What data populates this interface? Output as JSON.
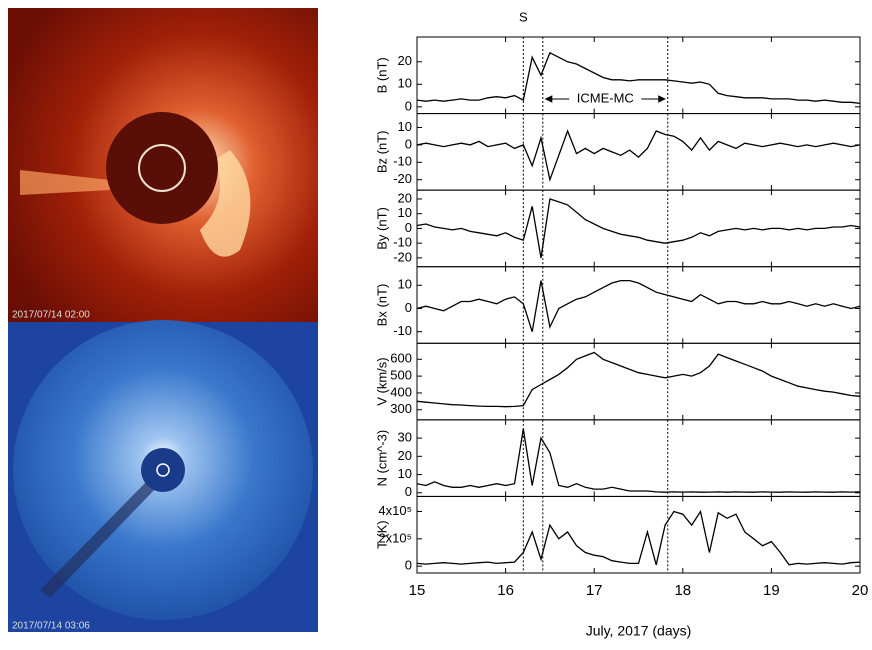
{
  "images": [
    {
      "label": "2017/07/14 02:00"
    },
    {
      "label": "2017/07/14 03:06"
    }
  ],
  "events": {
    "markers": [
      16.2,
      16.42,
      17.83
    ],
    "shock_label": "S",
    "interval_label": "ICME-MC"
  },
  "chart_data": [
    {
      "type": "line",
      "ylabel": "B (nT)",
      "ylim": [
        -3,
        31
      ],
      "yticks": [
        0,
        10,
        20
      ],
      "color": "#000000",
      "x": [
        15.0,
        15.1,
        15.2,
        15.3,
        15.4,
        15.5,
        15.6,
        15.7,
        15.8,
        15.9,
        16.0,
        16.1,
        16.2,
        16.3,
        16.4,
        16.5,
        16.6,
        16.7,
        16.8,
        16.9,
        17.0,
        17.1,
        17.2,
        17.3,
        17.4,
        17.5,
        17.6,
        17.7,
        17.8,
        17.9,
        18.0,
        18.1,
        18.2,
        18.3,
        18.4,
        18.5,
        18.6,
        18.7,
        18.8,
        18.9,
        19.0,
        19.1,
        19.2,
        19.3,
        19.4,
        19.5,
        19.6,
        19.7,
        19.8,
        19.9,
        20.0
      ],
      "values": [
        3,
        2.5,
        3,
        2.5,
        3,
        3.5,
        3,
        3,
        4,
        4.5,
        4,
        5,
        3,
        22,
        14,
        24,
        22,
        20,
        19,
        17,
        15,
        13,
        12,
        12,
        11.5,
        12,
        12,
        12,
        12,
        11.5,
        11,
        10.5,
        11,
        10,
        6,
        5,
        4.5,
        4,
        4,
        4,
        3.5,
        3.5,
        3.5,
        3,
        3,
        2.5,
        3,
        2.5,
        2,
        2,
        1.5
      ]
    },
    {
      "type": "line",
      "ylabel": "Bz (nT)",
      "ylim": [
        -26,
        18
      ],
      "yticks": [
        10,
        0,
        -10,
        -20
      ],
      "color": "#000000",
      "x": [
        15.0,
        15.1,
        15.2,
        15.3,
        15.4,
        15.5,
        15.6,
        15.7,
        15.8,
        15.9,
        16.0,
        16.1,
        16.2,
        16.3,
        16.4,
        16.5,
        16.6,
        16.7,
        16.8,
        16.9,
        17.0,
        17.1,
        17.2,
        17.3,
        17.4,
        17.5,
        17.6,
        17.7,
        17.8,
        17.9,
        18.0,
        18.1,
        18.2,
        18.3,
        18.4,
        18.5,
        18.6,
        18.7,
        18.8,
        18.9,
        19.0,
        19.1,
        19.2,
        19.3,
        19.4,
        19.5,
        19.6,
        19.7,
        19.8,
        19.9,
        20.0
      ],
      "values": [
        0,
        1,
        0,
        -1,
        0,
        1,
        0,
        2,
        -1,
        0,
        1,
        -2,
        0,
        -12,
        4,
        -20,
        -6,
        8,
        -5,
        -2,
        -5,
        -2,
        -4,
        -6,
        -3,
        -7,
        -2,
        8,
        6,
        5,
        2,
        -3,
        4,
        -3,
        2,
        0,
        -2,
        1,
        0,
        -1,
        0,
        1,
        0,
        -1,
        0,
        -1,
        0,
        1,
        0,
        -1,
        0
      ]
    },
    {
      "type": "line",
      "ylabel": "By (nT)",
      "ylim": [
        -26,
        26
      ],
      "yticks": [
        20,
        10,
        0,
        -10,
        -20
      ],
      "color": "#000000",
      "x": [
        15.0,
        15.1,
        15.2,
        15.3,
        15.4,
        15.5,
        15.6,
        15.7,
        15.8,
        15.9,
        16.0,
        16.1,
        16.2,
        16.3,
        16.4,
        16.5,
        16.6,
        16.7,
        16.8,
        16.9,
        17.0,
        17.1,
        17.2,
        17.3,
        17.4,
        17.5,
        17.6,
        17.7,
        17.8,
        17.9,
        18.0,
        18.1,
        18.2,
        18.3,
        18.4,
        18.5,
        18.6,
        18.7,
        18.8,
        18.9,
        19.0,
        19.1,
        19.2,
        19.3,
        19.4,
        19.5,
        19.6,
        19.7,
        19.8,
        19.9,
        20.0
      ],
      "values": [
        2,
        3,
        1,
        0,
        -1,
        0,
        -2,
        -3,
        -4,
        -5,
        -3,
        -6,
        -8,
        15,
        -20,
        20,
        18,
        16,
        11,
        6,
        3,
        0,
        -2,
        -4,
        -5,
        -6,
        -8,
        -9,
        -10,
        -9,
        -8,
        -6,
        -3,
        -5,
        -2,
        -1,
        0,
        -1,
        0,
        -1,
        0,
        0,
        -1,
        0,
        -1,
        0,
        0,
        1,
        1,
        2,
        1
      ]
    },
    {
      "type": "line",
      "ylabel": "Bx (nT)",
      "ylim": [
        -15,
        18
      ],
      "yticks": [
        10,
        0,
        -10
      ],
      "color": "#000000",
      "x": [
        15.0,
        15.1,
        15.2,
        15.3,
        15.4,
        15.5,
        15.6,
        15.7,
        15.8,
        15.9,
        16.0,
        16.1,
        16.2,
        16.3,
        16.4,
        16.5,
        16.6,
        16.7,
        16.8,
        16.9,
        17.0,
        17.1,
        17.2,
        17.3,
        17.4,
        17.5,
        17.6,
        17.7,
        17.8,
        17.9,
        18.0,
        18.1,
        18.2,
        18.3,
        18.4,
        18.5,
        18.6,
        18.7,
        18.8,
        18.9,
        19.0,
        19.1,
        19.2,
        19.3,
        19.4,
        19.5,
        19.6,
        19.7,
        19.8,
        19.9,
        20.0
      ],
      "values": [
        0,
        1,
        0,
        -1,
        1,
        3,
        3,
        4,
        3,
        2,
        4,
        5,
        2,
        -10,
        12,
        -8,
        0,
        2,
        4,
        5,
        7,
        9,
        11,
        12,
        12,
        11,
        9,
        7,
        6,
        5,
        4,
        3,
        6,
        4,
        2,
        3,
        3,
        2,
        2,
        3,
        2,
        2,
        3,
        2,
        1,
        2,
        1,
        2,
        1,
        0,
        1
      ]
    },
    {
      "type": "line",
      "ylabel": "V (km/s)",
      "ylim": [
        240,
        695
      ],
      "yticks": [
        300,
        400,
        500,
        600
      ],
      "color": "#000000",
      "x": [
        15.0,
        15.1,
        15.2,
        15.3,
        15.4,
        15.5,
        15.6,
        15.7,
        15.8,
        15.9,
        16.0,
        16.1,
        16.2,
        16.3,
        16.4,
        16.5,
        16.6,
        16.7,
        16.8,
        16.9,
        17.0,
        17.1,
        17.2,
        17.3,
        17.4,
        17.5,
        17.6,
        17.7,
        17.8,
        17.9,
        18.0,
        18.1,
        18.2,
        18.3,
        18.4,
        18.5,
        18.6,
        18.7,
        18.8,
        18.9,
        19.0,
        19.1,
        19.2,
        19.3,
        19.4,
        19.5,
        19.6,
        19.7,
        19.8,
        19.9,
        20.0
      ],
      "values": [
        350,
        345,
        340,
        335,
        330,
        328,
        325,
        322,
        320,
        320,
        318,
        320,
        325,
        420,
        450,
        480,
        510,
        550,
        600,
        620,
        640,
        600,
        580,
        560,
        540,
        520,
        510,
        500,
        490,
        500,
        510,
        500,
        520,
        560,
        630,
        610,
        590,
        570,
        550,
        530,
        500,
        480,
        460,
        440,
        430,
        420,
        410,
        405,
        395,
        385,
        380
      ]
    },
    {
      "type": "line",
      "ylabel": "N (cm^-3)",
      "ylim": [
        -2,
        40
      ],
      "yticks": [
        0,
        10,
        20,
        30
      ],
      "color": "#000000",
      "x": [
        15.0,
        15.1,
        15.2,
        15.3,
        15.4,
        15.5,
        15.6,
        15.7,
        15.8,
        15.9,
        16.0,
        16.1,
        16.2,
        16.3,
        16.4,
        16.5,
        16.6,
        16.7,
        16.8,
        16.9,
        17.0,
        17.1,
        17.2,
        17.3,
        17.4,
        17.5,
        17.6,
        17.7,
        17.8,
        17.9,
        18.0,
        18.1,
        18.2,
        18.3,
        18.4,
        18.5,
        18.6,
        18.7,
        18.8,
        18.9,
        19.0,
        19.1,
        19.2,
        19.3,
        19.4,
        19.5,
        19.6,
        19.7,
        19.8,
        19.9,
        20.0
      ],
      "values": [
        5,
        4,
        6,
        4,
        3,
        3,
        4,
        3,
        4,
        5,
        4,
        5,
        35,
        4,
        30,
        22,
        4,
        3,
        5,
        3,
        2,
        2,
        3,
        2,
        1,
        1,
        1,
        0.5,
        0.3,
        0.5,
        0.4,
        0.5,
        0.3,
        0.4,
        0.5,
        0.3,
        0.5,
        0.4,
        0.3,
        0.5,
        0.4,
        0.3,
        0.5,
        0.4,
        0.3,
        0.5,
        0.4,
        0.3,
        0.5,
        0.4,
        0.5
      ]
    },
    {
      "type": "line",
      "ylabel": "T (K)",
      "ylim": [
        -50000,
        510000
      ],
      "yticks": [
        0,
        {
          "value": 200000,
          "label": "2x10⁵"
        },
        {
          "value": 400000,
          "label": "4x10⁵"
        }
      ],
      "color": "#000000",
      "xlabel": "July, 2017 (days)",
      "xlim": [
        15,
        20
      ],
      "xticks": [
        15,
        16,
        17,
        18,
        19,
        20
      ],
      "x": [
        15.0,
        15.1,
        15.2,
        15.3,
        15.4,
        15.5,
        15.6,
        15.7,
        15.8,
        15.9,
        16.0,
        16.1,
        16.2,
        16.3,
        16.4,
        16.5,
        16.6,
        16.7,
        16.8,
        16.9,
        17.0,
        17.1,
        17.2,
        17.3,
        17.4,
        17.5,
        17.6,
        17.7,
        17.8,
        17.9,
        18.0,
        18.1,
        18.2,
        18.3,
        18.4,
        18.5,
        18.6,
        18.7,
        18.8,
        18.9,
        19.0,
        19.1,
        19.2,
        19.3,
        19.4,
        19.5,
        19.6,
        19.7,
        19.8,
        19.9,
        20.0
      ],
      "values": [
        20000,
        15000,
        20000,
        25000,
        20000,
        15000,
        20000,
        25000,
        30000,
        20000,
        25000,
        30000,
        100000,
        250000,
        50000,
        300000,
        200000,
        250000,
        150000,
        100000,
        80000,
        70000,
        40000,
        30000,
        20000,
        20000,
        250000,
        10000,
        300000,
        400000,
        380000,
        300000,
        400000,
        100000,
        390000,
        350000,
        380000,
        250000,
        200000,
        150000,
        180000,
        100000,
        10000,
        20000,
        15000,
        20000,
        25000,
        20000,
        15000,
        25000,
        30000
      ]
    }
  ]
}
